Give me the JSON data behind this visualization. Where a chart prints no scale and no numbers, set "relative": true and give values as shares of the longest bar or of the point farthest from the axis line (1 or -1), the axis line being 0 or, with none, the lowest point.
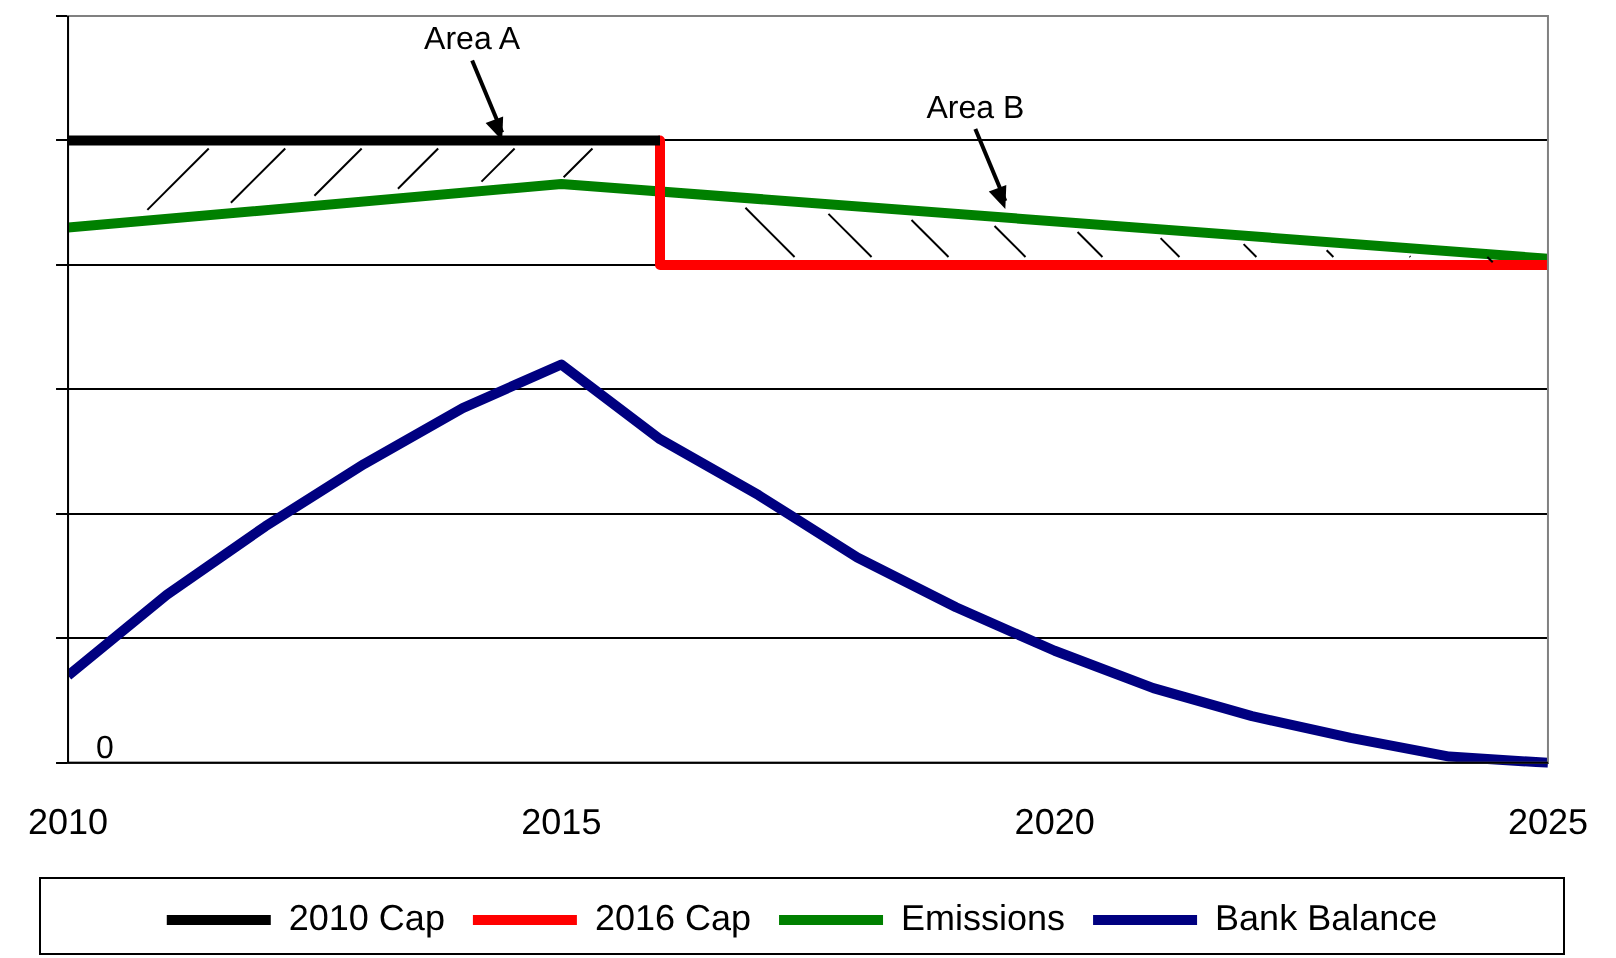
{
  "chart_data": {
    "type": "line",
    "relative": true,
    "xlim": [
      2010,
      2025
    ],
    "xticks": [
      2010,
      2015,
      2020,
      2025
    ],
    "grid": "y",
    "legend": "bottom",
    "marker": "none",
    "line_style": "solid",
    "series": [
      {
        "name": "2010 Cap",
        "color": "#000000",
        "x": [
          2010,
          2016
        ],
        "values": [
          1,
          1
        ]
      },
      {
        "name": "2016 Cap",
        "color": "#ff0000",
        "x": [
          2016,
          2016,
          2025
        ],
        "values": [
          1,
          0.8,
          0.8
        ]
      },
      {
        "name": "Emissions",
        "color": "#008000",
        "x": [
          2010,
          2015,
          2025
        ],
        "values": [
          0.86,
          0.93,
          0.81
        ]
      },
      {
        "name": "Bank Balance",
        "color": "#000080",
        "x": [
          2010,
          2011,
          2012,
          2013,
          2014,
          2015,
          2016,
          2017,
          2018,
          2019,
          2020,
          2021,
          2022,
          2023,
          2024,
          2025
        ],
        "values": [
          0.14,
          0.27,
          0.38,
          0.48,
          0.57,
          0.64,
          0.52,
          0.43,
          0.33,
          0.25,
          0.18,
          0.12,
          0.075,
          0.04,
          0.01,
          0
        ]
      }
    ],
    "annotations": [
      "0",
      {
        "text": "Area A",
        "x": 2014.4,
        "y": 1
      },
      {
        "text": "Area B",
        "x": 2019.5,
        "y": 0.89
      }
    ]
  }
}
